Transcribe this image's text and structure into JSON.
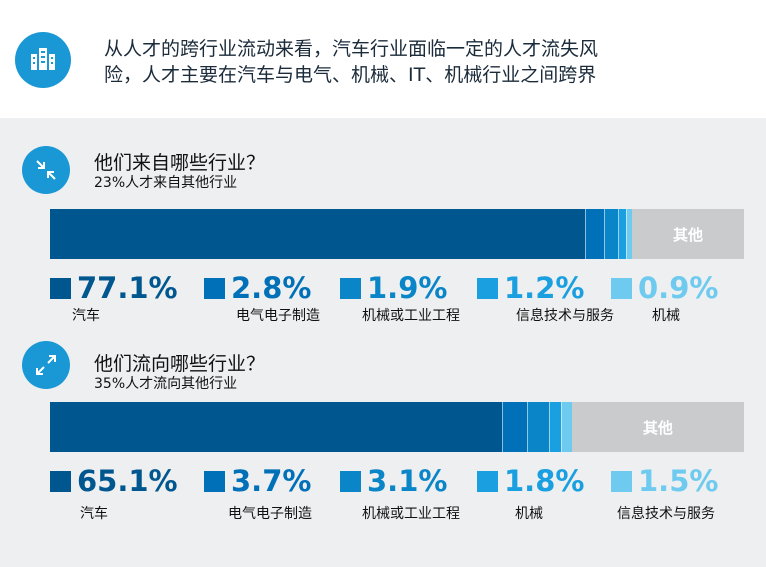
{
  "headline": {
    "line1": "从人才的跨行业流动来看，汽车行业面临一定的人才流失风",
    "line2": "险，人才主要在汽车与电气、机械、IT、机械行业之间跨界"
  },
  "colors": {
    "c1": "#00578f",
    "c2": "#0071b8",
    "c3": "#0a86c8",
    "c4": "#1aa0e0",
    "c5": "#6ecbef",
    "other": "#c9cbcd",
    "icon_bg": "#1a98d5"
  },
  "icons": [
    "building-icon",
    "arrows-inward-icon",
    "arrows-outward-icon"
  ],
  "chart_data": [
    {
      "type": "bar",
      "stacked": true,
      "orientation": "horizontal",
      "title": "他们来自哪些行业？",
      "subtitle": "23%人才来自其他行业",
      "categories": [
        "汽车",
        "电气电子制造",
        "机械或工业工程",
        "信息技术与服务",
        "机械"
      ],
      "values": [
        77.1,
        2.8,
        1.9,
        1.2,
        0.9
      ],
      "value_labels": [
        "77.1%",
        "2.8%",
        "1.9%",
        "1.2%",
        "0.9%"
      ],
      "other_label": "其他",
      "other_value": 16.1,
      "units": "%"
    },
    {
      "type": "bar",
      "stacked": true,
      "orientation": "horizontal",
      "title": "他们流向哪些行业？",
      "subtitle": "35%人才流向其他行业",
      "categories": [
        "汽车",
        "电气电子制造",
        "机械或工业工程",
        "机械",
        "信息技术与服务"
      ],
      "values": [
        65.1,
        3.7,
        3.1,
        1.8,
        1.5
      ],
      "value_labels": [
        "65.1%",
        "3.7%",
        "3.1%",
        "1.8%",
        "1.5%"
      ],
      "other_label": "其他",
      "other_value": 24.8,
      "units": "%"
    }
  ]
}
